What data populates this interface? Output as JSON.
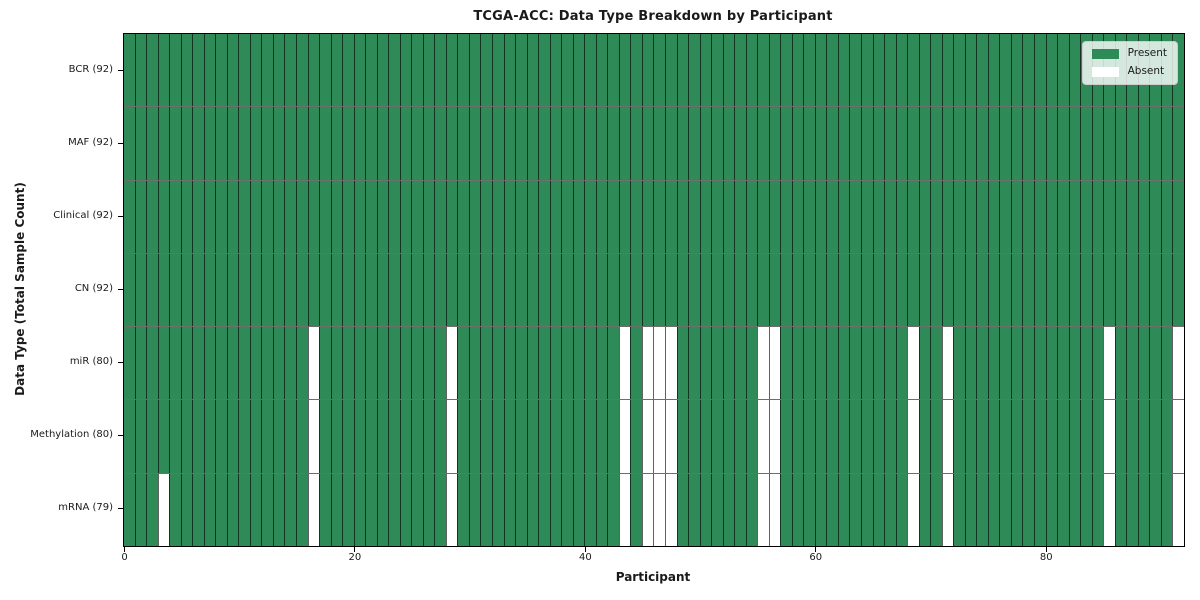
{
  "chart_data": {
    "type": "heatmap",
    "title": "TCGA-ACC: Data Type Breakdown by Participant",
    "xlabel": "Participant",
    "ylabel": "Data Type (Total Sample Count)",
    "x_ticks": [
      0,
      20,
      40,
      60,
      80
    ],
    "x_range": [
      0,
      92
    ],
    "n_participants": 92,
    "grid": "cell-borders-on",
    "legend_position": "upper-right",
    "legend": [
      {
        "label": "Present",
        "color": "#2e8b57"
      },
      {
        "label": "Absent",
        "color": "#ffffff"
      }
    ],
    "rows": [
      {
        "label": "BCR (92)",
        "data_type": "BCR",
        "present_count": 92,
        "absent_participants": []
      },
      {
        "label": "MAF (92)",
        "data_type": "MAF",
        "present_count": 92,
        "absent_participants": []
      },
      {
        "label": "Clinical (92)",
        "data_type": "Clinical",
        "present_count": 92,
        "absent_participants": []
      },
      {
        "label": "CN (92)",
        "data_type": "CN",
        "present_count": 92,
        "absent_participants": []
      },
      {
        "label": "miR (80)",
        "data_type": "miR",
        "present_count": 80,
        "absent_participants": [
          16,
          28,
          43,
          45,
          46,
          47,
          55,
          56,
          68,
          71,
          85,
          91
        ]
      },
      {
        "label": "Methylation (80)",
        "data_type": "Methylation",
        "present_count": 80,
        "absent_participants": [
          16,
          28,
          43,
          45,
          46,
          47,
          55,
          56,
          68,
          71,
          85,
          91
        ]
      },
      {
        "label": "mRNA (79)",
        "data_type": "mRNA",
        "present_count": 79,
        "absent_participants": [
          3,
          16,
          28,
          43,
          45,
          46,
          47,
          55,
          56,
          68,
          71,
          85,
          91
        ]
      }
    ],
    "colors": {
      "present": "#2e8b57",
      "absent": "#ffffff",
      "cell_edge": "rgba(0,0,0,0.62)",
      "row_divider": "#6d6d6d",
      "frame": "#000000"
    }
  }
}
